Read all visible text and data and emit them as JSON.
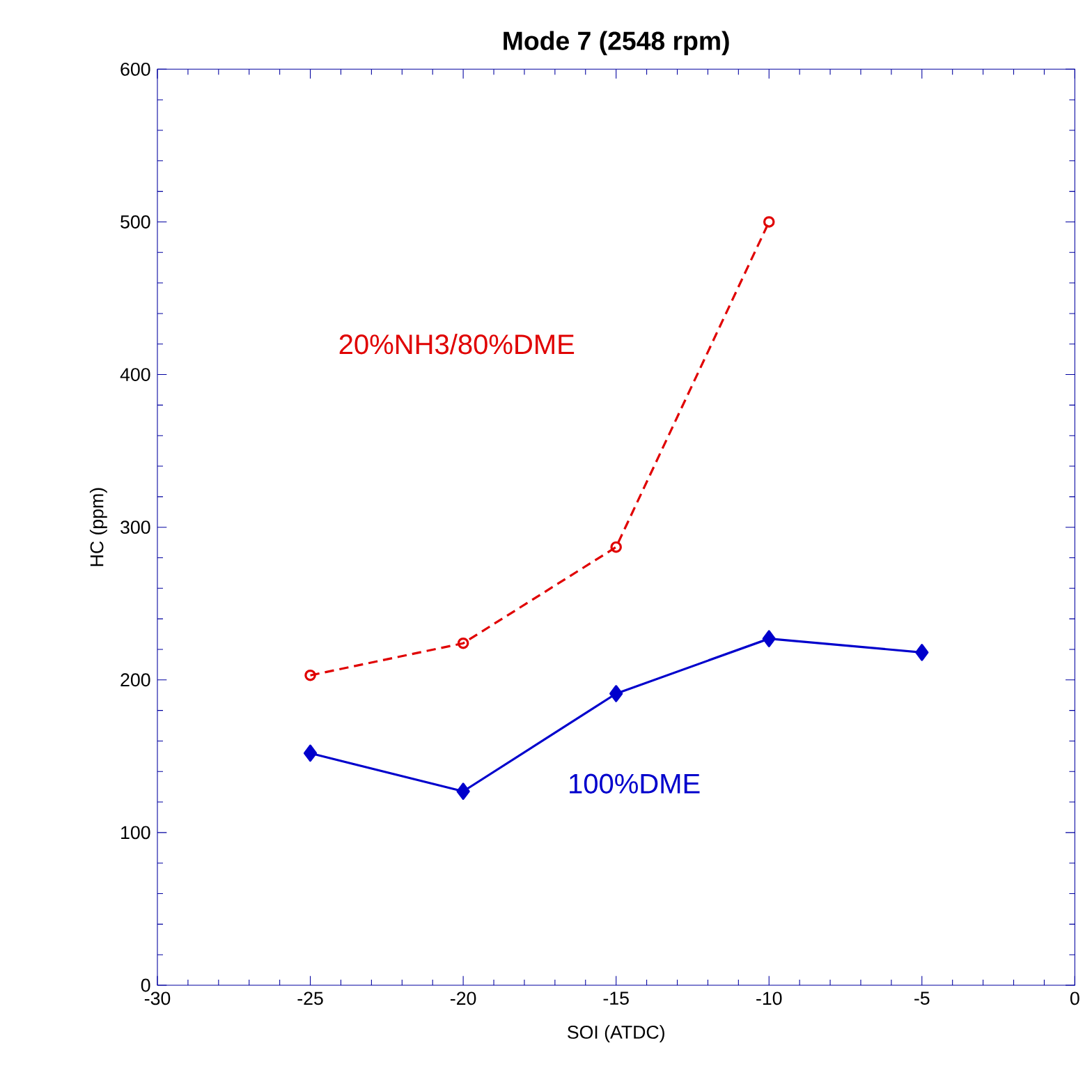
{
  "chart_data": {
    "type": "line",
    "title": "Mode 7 (2548 rpm)",
    "xlabel": "SOI (ATDC)",
    "ylabel": "HC (ppm)",
    "xlim": [
      -30,
      0
    ],
    "xticks": [
      -30,
      -25,
      -20,
      -15,
      -10,
      -5,
      0
    ],
    "ylim": [
      0,
      600
    ],
    "yticks": [
      0,
      100,
      200,
      300,
      400,
      500,
      600
    ],
    "grid": false,
    "legend": false,
    "series": [
      {
        "name": "20%NH3/80%DME",
        "color": "#e00000",
        "x": [
          -25,
          -20,
          -15,
          -10
        ],
        "values": [
          203,
          224,
          287,
          500
        ],
        "marker": "circle",
        "line_style": "dashed"
      },
      {
        "name": "100%DME",
        "color": "#0000cc",
        "x": [
          -25,
          -20,
          -15,
          -10,
          -5
        ],
        "values": [
          152,
          127,
          191,
          227,
          218
        ],
        "marker": "diamond",
        "line_style": "solid"
      }
    ]
  }
}
